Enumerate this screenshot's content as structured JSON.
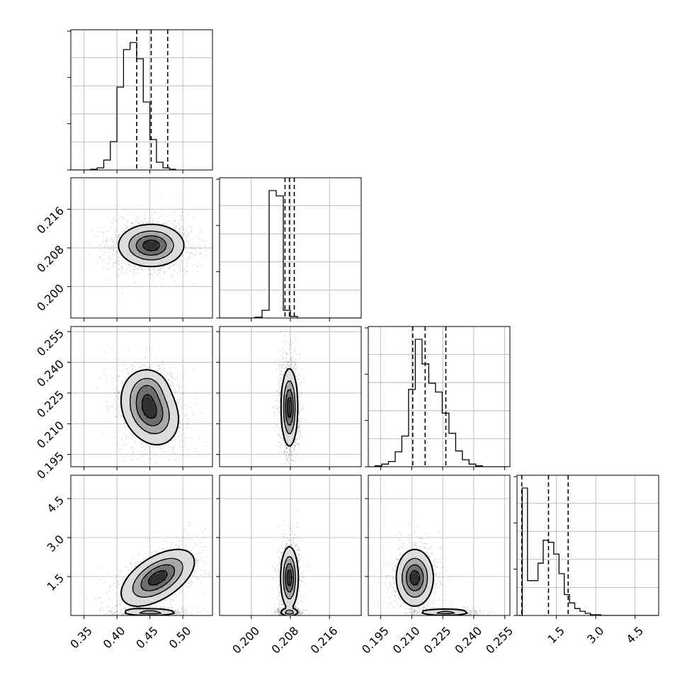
{
  "figure": {
    "type": "corner-plot",
    "dims": 4
  },
  "chart_data": {
    "type": "corner",
    "parameters": [
      {
        "range": [
          0.33,
          0.545
        ],
        "ticks": [
          0.35,
          0.4,
          0.45,
          0.5
        ],
        "tick_labels": [
          "0.35",
          "0.40",
          "0.45",
          "0.50"
        ],
        "quantiles": [
          0.43,
          0.452,
          0.477
        ],
        "hist": {
          "start": 0.33,
          "width": 0.01,
          "counts": [
            0,
            0,
            0,
            1,
            3,
            14,
            40,
            117,
            170,
            180,
            157,
            96,
            43,
            11,
            3,
            1
          ]
        }
      },
      {
        "range": [
          0.1935,
          0.2225
        ],
        "ticks": [
          0.2,
          0.208,
          0.216
        ],
        "tick_labels": [
          "0.200",
          "0.208",
          "0.216"
        ],
        "quantiles": [
          0.2069,
          0.2078,
          0.2088
        ],
        "hist": {
          "start": 0.1935,
          "width": 0.00145,
          "counts": [
            0,
            0,
            0,
            0,
            0,
            1,
            10,
            165,
            158,
            10,
            2,
            0,
            0,
            0,
            0,
            0,
            0,
            0,
            0,
            0
          ]
        }
      },
      {
        "range": [
          0.189,
          0.2575
        ],
        "ticks": [
          0.195,
          0.21,
          0.225,
          0.24,
          0.255
        ],
        "tick_labels": [
          "0.195",
          "0.210",
          "0.225",
          "0.240",
          "0.255"
        ],
        "quantiles": [
          0.2105,
          0.2165,
          0.2265
        ],
        "hist": {
          "start": 0.189,
          "width": 0.00325,
          "counts": [
            0,
            1,
            3,
            6,
            17,
            35,
            88,
            145,
            117,
            95,
            85,
            61,
            38,
            18,
            8,
            3,
            1,
            0,
            0,
            0,
            0
          ]
        }
      },
      {
        "range": [
          0,
          5.4
        ],
        "ticks": [
          1.5,
          3.0,
          4.5
        ],
        "tick_labels": [
          "1.5",
          "3.0",
          "4.5"
        ],
        "quantiles": [
          0.18,
          1.2,
          1.95
        ],
        "hist": {
          "start": 0.0,
          "width": 0.2,
          "counts": [
            0,
            183,
            50,
            50,
            75,
            108,
            105,
            88,
            60,
            30,
            18,
            10,
            6,
            3,
            1,
            1,
            0,
            0,
            0,
            0,
            0,
            0,
            0,
            0,
            0,
            0,
            0
          ]
        }
      }
    ],
    "row_labels": {
      "1": [
        "0.200",
        "0.208",
        "0.216"
      ],
      "2": [
        "0.195",
        "0.210",
        "0.225",
        "0.240",
        "0.255"
      ],
      "3": [
        "1.5",
        "3.0",
        "4.5"
      ]
    },
    "bottom_labels": {
      "0": [
        "0.35",
        "0.40",
        "0.45",
        "0.50"
      ],
      "1": [
        "0.200",
        "0.208",
        "0.216"
      ],
      "2": [
        "0.195",
        "0.210",
        "0.225",
        "0.240",
        "0.255"
      ],
      "3": [
        "1.5",
        "3.0",
        "4.5"
      ]
    },
    "pairs": [
      {
        "row": 1,
        "col": 0,
        "clusters": [
          {
            "cx": 0.452,
            "cy": 0.2085,
            "sx": 0.025,
            "sy": 0.0022,
            "rho": 0.0,
            "w": 1.0
          }
        ]
      },
      {
        "row": 2,
        "col": 0,
        "clusters": [
          {
            "cx": 0.45,
            "cy": 0.2165,
            "sx": 0.022,
            "sy": 0.0085,
            "rho": -0.25,
            "w": 0.75
          },
          {
            "cx": 0.448,
            "cy": 0.228,
            "sx": 0.016,
            "sy": 0.005,
            "rho": 0.0,
            "w": 0.25
          }
        ]
      },
      {
        "row": 2,
        "col": 1,
        "clusters": [
          {
            "cx": 0.2078,
            "cy": 0.218,
            "sx": 0.00085,
            "sy": 0.0095,
            "rho": 0.0,
            "w": 1.0
          }
        ]
      },
      {
        "row": 3,
        "col": 0,
        "clusters": [
          {
            "cx": 0.452,
            "cy": 0.12,
            "sx": 0.022,
            "sy": 0.07,
            "rho": 0.0,
            "w": 0.35
          },
          {
            "cx": 0.462,
            "cy": 1.45,
            "sx": 0.028,
            "sy": 0.55,
            "rho": 0.55,
            "w": 0.65
          }
        ]
      },
      {
        "row": 3,
        "col": 1,
        "clusters": [
          {
            "cx": 0.2078,
            "cy": 0.12,
            "sx": 0.001,
            "sy": 0.07,
            "rho": 0.0,
            "w": 0.35
          },
          {
            "cx": 0.2078,
            "cy": 1.45,
            "sx": 0.0009,
            "sy": 0.6,
            "rho": 0.0,
            "w": 0.65
          }
        ]
      },
      {
        "row": 3,
        "col": 2,
        "clusters": [
          {
            "cx": 0.2265,
            "cy": 0.12,
            "sx": 0.0065,
            "sy": 0.07,
            "rho": 0.0,
            "w": 0.35
          },
          {
            "cx": 0.2115,
            "cy": 1.45,
            "sx": 0.0045,
            "sy": 0.55,
            "rho": 0.0,
            "w": 0.65
          }
        ]
      }
    ]
  },
  "colors": {
    "line": "#000000",
    "grid": "#b0b0b0",
    "points": "#000000"
  }
}
